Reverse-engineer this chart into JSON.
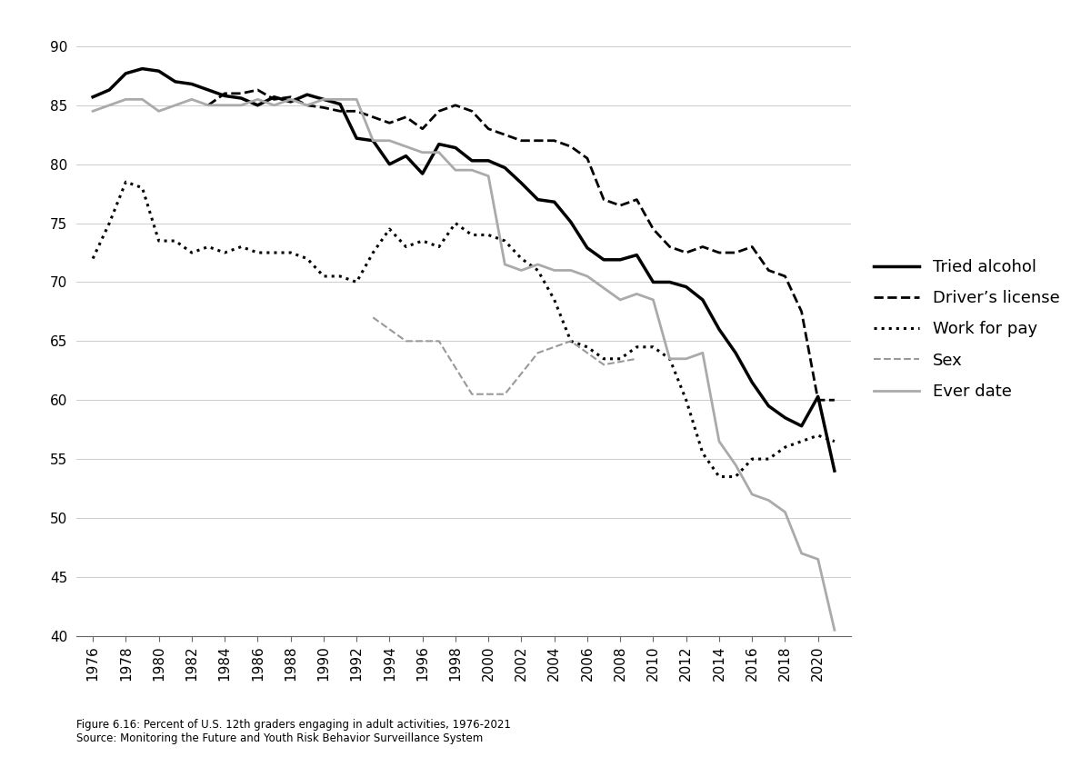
{
  "caption_line1": "Figure 6.16: Percent of U.S. 12th graders engaging in adult activities, 1976-2021",
  "caption_line2": "Source: Monitoring the Future and Youth Risk Behavior Surveillance System",
  "ylim": [
    40,
    92
  ],
  "yticks": [
    40,
    45,
    50,
    55,
    60,
    65,
    70,
    75,
    80,
    85,
    90
  ],
  "background_color": "#ffffff",
  "grid_color": "#cccccc",
  "tried_alcohol": {
    "label": "Tried alcohol",
    "color": "#000000",
    "linestyle": "solid",
    "linewidth": 2.5,
    "years": [
      1976,
      1977,
      1978,
      1979,
      1980,
      1981,
      1982,
      1983,
      1984,
      1985,
      1986,
      1987,
      1988,
      1989,
      1990,
      1991,
      1992,
      1993,
      1994,
      1995,
      1996,
      1997,
      1998,
      1999,
      2000,
      2001,
      2002,
      2003,
      2004,
      2005,
      2006,
      2007,
      2008,
      2009,
      2010,
      2011,
      2012,
      2013,
      2014,
      2015,
      2016,
      2017,
      2018,
      2019,
      2020,
      2021
    ],
    "values": [
      85.7,
      86.3,
      87.7,
      88.1,
      87.9,
      87.0,
      86.8,
      86.3,
      85.8,
      85.6,
      85.0,
      85.7,
      85.3,
      85.9,
      85.5,
      85.1,
      82.2,
      82.0,
      80.0,
      80.7,
      79.2,
      81.7,
      81.4,
      80.3,
      80.3,
      79.7,
      78.4,
      77.0,
      76.8,
      75.1,
      72.9,
      71.9,
      71.9,
      72.3,
      70.0,
      70.0,
      69.6,
      68.5,
      66.0,
      64.0,
      61.5,
      59.5,
      58.5,
      57.8,
      60.3,
      54.0
    ]
  },
  "drivers_license": {
    "label": "Driver’s license",
    "color": "#000000",
    "linestyle": "dashed",
    "linewidth": 2.0,
    "years": [
      1983,
      1984,
      1985,
      1986,
      1987,
      1988,
      1989,
      1990,
      1991,
      1992,
      1993,
      1994,
      1995,
      1996,
      1997,
      1998,
      1999,
      2000,
      2001,
      2002,
      2003,
      2004,
      2005,
      2006,
      2007,
      2008,
      2009,
      2010,
      2011,
      2012,
      2013,
      2014,
      2015,
      2016,
      2017,
      2018,
      2019,
      2020,
      2021
    ],
    "values": [
      85.0,
      86.0,
      86.0,
      86.3,
      85.5,
      85.7,
      85.0,
      84.8,
      84.5,
      84.5,
      84.0,
      83.5,
      84.0,
      83.0,
      84.5,
      85.0,
      84.5,
      83.0,
      82.5,
      82.0,
      82.0,
      82.0,
      81.5,
      80.5,
      77.0,
      76.5,
      77.0,
      74.5,
      73.0,
      72.5,
      73.0,
      72.5,
      72.5,
      73.0,
      71.0,
      70.5,
      67.5,
      60.0,
      60.0
    ]
  },
  "work_for_pay": {
    "label": "Work for pay",
    "color": "#000000",
    "linestyle": "dotted",
    "linewidth": 2.2,
    "years": [
      1976,
      1977,
      1978,
      1979,
      1980,
      1981,
      1982,
      1983,
      1984,
      1985,
      1986,
      1987,
      1988,
      1989,
      1990,
      1991,
      1992,
      1993,
      1994,
      1995,
      1996,
      1997,
      1998,
      1999,
      2000,
      2001,
      2002,
      2003,
      2004,
      2005,
      2006,
      2007,
      2008,
      2009,
      2010,
      2011,
      2012,
      2013,
      2014,
      2015,
      2016,
      2017,
      2018,
      2019,
      2020,
      2021
    ],
    "values": [
      72.0,
      75.0,
      78.5,
      78.0,
      73.5,
      73.5,
      72.5,
      73.0,
      72.5,
      73.0,
      72.5,
      72.5,
      72.5,
      72.0,
      70.5,
      70.5,
      70.0,
      72.5,
      74.5,
      73.0,
      73.5,
      73.0,
      75.0,
      74.0,
      74.0,
      73.5,
      72.0,
      71.0,
      68.5,
      65.0,
      64.5,
      63.5,
      63.5,
      64.5,
      64.5,
      63.5,
      60.0,
      55.5,
      53.5,
      53.5,
      55.0,
      55.0,
      56.0,
      56.5,
      57.0,
      56.5
    ]
  },
  "sex": {
    "label": "Sex",
    "color": "#999999",
    "linestyle": "dashed",
    "linewidth": 1.5,
    "years": [
      1991,
      1993,
      1995,
      1997,
      1999,
      2001,
      2003,
      2005,
      2007,
      2009
    ],
    "values": [
      null,
      67.0,
      65.0,
      65.0,
      60.5,
      60.5,
      64.0,
      65.0,
      63.0,
      63.5
    ]
  },
  "ever_date": {
    "label": "Ever date",
    "color": "#aaaaaa",
    "linestyle": "solid",
    "linewidth": 2.0,
    "years": [
      1976,
      1977,
      1978,
      1979,
      1980,
      1981,
      1982,
      1983,
      1984,
      1985,
      1986,
      1987,
      1988,
      1989,
      1990,
      1991,
      1992,
      1993,
      1994,
      1995,
      1996,
      1997,
      1998,
      1999,
      2000,
      2001,
      2002,
      2003,
      2004,
      2005,
      2006,
      2007,
      2008,
      2009,
      2010,
      2011,
      2012,
      2013,
      2014,
      2015,
      2016,
      2017,
      2018,
      2019,
      2020,
      2021
    ],
    "values": [
      84.5,
      85.0,
      85.5,
      85.5,
      84.5,
      85.0,
      85.5,
      85.0,
      85.0,
      85.0,
      85.5,
      85.0,
      85.5,
      85.0,
      85.5,
      85.5,
      85.5,
      82.0,
      82.0,
      81.5,
      81.0,
      81.0,
      79.5,
      79.5,
      79.0,
      71.5,
      71.0,
      71.5,
      71.0,
      71.0,
      70.5,
      69.5,
      68.5,
      69.0,
      68.5,
      63.5,
      63.5,
      64.0,
      56.5,
      54.5,
      52.0,
      51.5,
      50.5,
      47.0,
      46.5,
      40.5
    ]
  }
}
